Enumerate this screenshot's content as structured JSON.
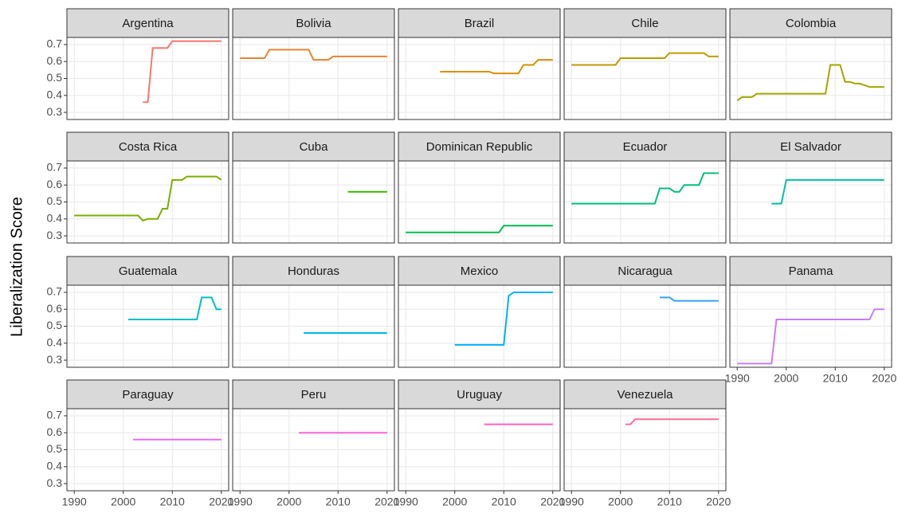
{
  "ylabel": "Liberalization Score",
  "chart_data": [
    {
      "type": "line",
      "title": "Argentina",
      "color": "#F8766D",
      "x": [
        2004,
        2005,
        2006,
        2007,
        2008,
        2009,
        2010,
        2011,
        2012,
        2013,
        2014,
        2015,
        2016,
        2017,
        2018,
        2019,
        2020
      ],
      "values": [
        0.36,
        0.36,
        0.68,
        0.68,
        0.68,
        0.68,
        0.72,
        0.72,
        0.72,
        0.72,
        0.72,
        0.72,
        0.72,
        0.72,
        0.72,
        0.72,
        0.72
      ],
      "xlim": [
        1988.5,
        2021.5
      ],
      "ylim": [
        0.258,
        0.742
      ],
      "xticks": [
        1990,
        2000,
        2010,
        2020
      ],
      "yticks": [
        0.3,
        0.4,
        0.5,
        0.6,
        0.7
      ],
      "grid": true
    },
    {
      "type": "line",
      "title": "Bolivia",
      "color": "#EA8331",
      "x": [
        1990,
        1995,
        1996,
        2004,
        2005,
        2008,
        2009,
        2020
      ],
      "values": [
        0.62,
        0.62,
        0.67,
        0.67,
        0.61,
        0.61,
        0.63,
        0.63
      ],
      "xlim": [
        1988.5,
        2021.5
      ],
      "ylim": [
        0.258,
        0.742
      ],
      "xticks": [
        1990,
        2000,
        2010,
        2020
      ],
      "yticks": [
        0.3,
        0.4,
        0.5,
        0.6,
        0.7
      ],
      "grid": true
    },
    {
      "type": "line",
      "title": "Brazil",
      "color": "#D89000",
      "x": [
        1997,
        2007,
        2008,
        2013,
        2014,
        2016,
        2017,
        2020
      ],
      "values": [
        0.54,
        0.54,
        0.53,
        0.53,
        0.58,
        0.58,
        0.61,
        0.61
      ],
      "xlim": [
        1988.5,
        2021.5
      ],
      "ylim": [
        0.258,
        0.742
      ],
      "xticks": [
        1990,
        2000,
        2010,
        2020
      ],
      "yticks": [
        0.3,
        0.4,
        0.5,
        0.6,
        0.7
      ],
      "grid": true
    },
    {
      "type": "line",
      "title": "Chile",
      "color": "#C09B00",
      "x": [
        1990,
        1999,
        2000,
        2009,
        2010,
        2017,
        2018,
        2020
      ],
      "values": [
        0.58,
        0.58,
        0.62,
        0.62,
        0.65,
        0.65,
        0.63,
        0.63
      ],
      "xlim": [
        1988.5,
        2021.5
      ],
      "ylim": [
        0.258,
        0.742
      ],
      "xticks": [
        1990,
        2000,
        2010,
        2020
      ],
      "yticks": [
        0.3,
        0.4,
        0.5,
        0.6,
        0.7
      ],
      "grid": true
    },
    {
      "type": "line",
      "title": "Colombia",
      "color": "#A3A500",
      "x": [
        1990,
        1991,
        1993,
        1994,
        2008,
        2009,
        2011,
        2012,
        2013,
        2014,
        2015,
        2016,
        2017,
        2020
      ],
      "values": [
        0.37,
        0.39,
        0.39,
        0.41,
        0.41,
        0.58,
        0.58,
        0.48,
        0.48,
        0.47,
        0.47,
        0.46,
        0.45,
        0.45
      ],
      "xlim": [
        1988.5,
        2021.5
      ],
      "ylim": [
        0.258,
        0.742
      ],
      "xticks": [
        1990,
        2000,
        2010,
        2020
      ],
      "yticks": [
        0.3,
        0.4,
        0.5,
        0.6,
        0.7
      ],
      "grid": true
    },
    {
      "type": "line",
      "title": "Costa Rica",
      "color": "#7CAE00",
      "x": [
        1990,
        2003,
        2004,
        2005,
        2007,
        2008,
        2009,
        2010,
        2012,
        2013,
        2019,
        2020
      ],
      "values": [
        0.42,
        0.42,
        0.39,
        0.4,
        0.4,
        0.46,
        0.46,
        0.63,
        0.63,
        0.65,
        0.65,
        0.63
      ],
      "xlim": [
        1988.5,
        2021.5
      ],
      "ylim": [
        0.258,
        0.742
      ],
      "xticks": [
        1990,
        2000,
        2010,
        2020
      ],
      "yticks": [
        0.3,
        0.4,
        0.5,
        0.6,
        0.7
      ],
      "grid": true
    },
    {
      "type": "line",
      "title": "Cuba",
      "color": "#39B600",
      "x": [
        2012,
        2020
      ],
      "values": [
        0.56,
        0.56
      ],
      "xlim": [
        1988.5,
        2021.5
      ],
      "ylim": [
        0.258,
        0.742
      ],
      "xticks": [
        1990,
        2000,
        2010,
        2020
      ],
      "yticks": [
        0.3,
        0.4,
        0.5,
        0.6,
        0.7
      ],
      "grid": true
    },
    {
      "type": "line",
      "title": "Dominican Republic",
      "color": "#00BB4E",
      "x": [
        1990,
        2009,
        2010,
        2020
      ],
      "values": [
        0.32,
        0.32,
        0.36,
        0.36
      ],
      "xlim": [
        1988.5,
        2021.5
      ],
      "ylim": [
        0.258,
        0.742
      ],
      "xticks": [
        1990,
        2000,
        2010,
        2020
      ],
      "yticks": [
        0.3,
        0.4,
        0.5,
        0.6,
        0.7
      ],
      "grid": true
    },
    {
      "type": "line",
      "title": "Ecuador",
      "color": "#00BF7D",
      "x": [
        1990,
        2007,
        2008,
        2010,
        2011,
        2012,
        2013,
        2016,
        2017,
        2020
      ],
      "values": [
        0.49,
        0.49,
        0.58,
        0.58,
        0.56,
        0.56,
        0.6,
        0.6,
        0.67,
        0.67
      ],
      "xlim": [
        1988.5,
        2021.5
      ],
      "ylim": [
        0.258,
        0.742
      ],
      "xticks": [
        1990,
        2000,
        2010,
        2020
      ],
      "yticks": [
        0.3,
        0.4,
        0.5,
        0.6,
        0.7
      ],
      "grid": true
    },
    {
      "type": "line",
      "title": "El Salvador",
      "color": "#00C1A3",
      "x": [
        1997,
        1999,
        2000,
        2020
      ],
      "values": [
        0.49,
        0.49,
        0.63,
        0.63
      ],
      "xlim": [
        1988.5,
        2021.5
      ],
      "ylim": [
        0.258,
        0.742
      ],
      "xticks": [
        1990,
        2000,
        2010,
        2020
      ],
      "yticks": [
        0.3,
        0.4,
        0.5,
        0.6,
        0.7
      ],
      "grid": true
    },
    {
      "type": "line",
      "title": "Guatemala",
      "color": "#00BFC4",
      "x": [
        2001,
        2015,
        2016,
        2018,
        2019,
        2020
      ],
      "values": [
        0.54,
        0.54,
        0.67,
        0.67,
        0.6,
        0.6
      ],
      "xlim": [
        1988.5,
        2021.5
      ],
      "ylim": [
        0.258,
        0.742
      ],
      "xticks": [
        1990,
        2000,
        2010,
        2020
      ],
      "yticks": [
        0.3,
        0.4,
        0.5,
        0.6,
        0.7
      ],
      "grid": true
    },
    {
      "type": "line",
      "title": "Honduras",
      "color": "#00BAE0",
      "x": [
        2003,
        2020
      ],
      "values": [
        0.46,
        0.46
      ],
      "xlim": [
        1988.5,
        2021.5
      ],
      "ylim": [
        0.258,
        0.742
      ],
      "xticks": [
        1990,
        2000,
        2010,
        2020
      ],
      "yticks": [
        0.3,
        0.4,
        0.5,
        0.6,
        0.7
      ],
      "grid": true
    },
    {
      "type": "line",
      "title": "Mexico",
      "color": "#00B0F6",
      "x": [
        2000,
        2010,
        2011,
        2012,
        2020
      ],
      "values": [
        0.39,
        0.39,
        0.68,
        0.7,
        0.7
      ],
      "xlim": [
        1988.5,
        2021.5
      ],
      "ylim": [
        0.258,
        0.742
      ],
      "xticks": [
        1990,
        2000,
        2010,
        2020
      ],
      "yticks": [
        0.3,
        0.4,
        0.5,
        0.6,
        0.7
      ],
      "grid": true
    },
    {
      "type": "line",
      "title": "Nicaragua",
      "color": "#35A2FF",
      "x": [
        2008,
        2010,
        2011,
        2020
      ],
      "values": [
        0.67,
        0.67,
        0.65,
        0.65
      ],
      "xlim": [
        1988.5,
        2021.5
      ],
      "ylim": [
        0.258,
        0.742
      ],
      "xticks": [
        1990,
        2000,
        2010,
        2020
      ],
      "yticks": [
        0.3,
        0.4,
        0.5,
        0.6,
        0.7
      ],
      "grid": true
    },
    {
      "type": "line",
      "title": "Panama",
      "color": "#C77CFF",
      "x": [
        1990,
        1997,
        1998,
        2017,
        2018,
        2020
      ],
      "values": [
        0.28,
        0.28,
        0.54,
        0.54,
        0.6,
        0.6
      ],
      "xlim": [
        1988.5,
        2021.5
      ],
      "ylim": [
        0.258,
        0.742
      ],
      "xticks": [
        1990,
        2000,
        2010,
        2020
      ],
      "yticks": [
        0.3,
        0.4,
        0.5,
        0.6,
        0.7
      ],
      "grid": true
    },
    {
      "type": "line",
      "title": "Paraguay",
      "color": "#E76BF3",
      "x": [
        2002,
        2020
      ],
      "values": [
        0.56,
        0.56
      ],
      "xlim": [
        1988.5,
        2021.5
      ],
      "ylim": [
        0.258,
        0.742
      ],
      "xticks": [
        1990,
        2000,
        2010,
        2020
      ],
      "yticks": [
        0.3,
        0.4,
        0.5,
        0.6,
        0.7
      ],
      "grid": true
    },
    {
      "type": "line",
      "title": "Peru",
      "color": "#FA62DB",
      "x": [
        2002,
        2020
      ],
      "values": [
        0.6,
        0.6
      ],
      "xlim": [
        1988.5,
        2021.5
      ],
      "ylim": [
        0.258,
        0.742
      ],
      "xticks": [
        1990,
        2000,
        2010,
        2020
      ],
      "yticks": [
        0.3,
        0.4,
        0.5,
        0.6,
        0.7
      ],
      "grid": true
    },
    {
      "type": "line",
      "title": "Uruguay",
      "color": "#FF62BC",
      "x": [
        2006,
        2020
      ],
      "values": [
        0.65,
        0.65
      ],
      "xlim": [
        1988.5,
        2021.5
      ],
      "ylim": [
        0.258,
        0.742
      ],
      "xticks": [
        1990,
        2000,
        2010,
        2020
      ],
      "yticks": [
        0.3,
        0.4,
        0.5,
        0.6,
        0.7
      ],
      "grid": true
    },
    {
      "type": "line",
      "title": "Venezuela",
      "color": "#FF6C91",
      "x": [
        2001,
        2002,
        2003,
        2020
      ],
      "values": [
        0.65,
        0.65,
        0.68,
        0.68
      ],
      "xlim": [
        1988.5,
        2021.5
      ],
      "ylim": [
        0.258,
        0.742
      ],
      "xticks": [
        1990,
        2000,
        2010,
        2020
      ],
      "yticks": [
        0.3,
        0.4,
        0.5,
        0.6,
        0.7
      ],
      "grid": true
    }
  ]
}
